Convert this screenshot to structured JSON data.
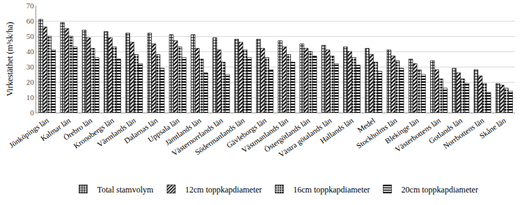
{
  "chart_data": {
    "type": "bar",
    "y_label": "Virkestäthet (m³sk/ha)",
    "categories": [
      "Jönköpings län",
      "Kalmar län",
      "Örebro län",
      "Kronobergs län",
      "Värmlands län",
      "Dalarnas län",
      "Uppsala län",
      "Jämtlands län",
      "Västernorrlands län",
      "Södermanlands län",
      "Gävleborgs län",
      "Västmanlands län",
      "Östergötlands län",
      "Västra götalands län",
      "Hallands län",
      "Medel",
      "Stockholms län",
      "Blekinge län",
      "Västerbottens län",
      "Gotlands län",
      "Norrbottens län",
      "Skåne län"
    ],
    "series": [
      {
        "name": "Total stamvolym",
        "color": "#000000",
        "marker": "+",
        "values": [
          61,
          59,
          54,
          53,
          52,
          52,
          51,
          51,
          49,
          48,
          48,
          47,
          45,
          44,
          43,
          42,
          41,
          35,
          34,
          29,
          28,
          19
        ]
      },
      {
        "name": "12cm toppkapdiameter",
        "color": "#000000",
        "marker": "/",
        "values": [
          56,
          55,
          49,
          49,
          46,
          45,
          47,
          42,
          41,
          46,
          42,
          43,
          42,
          41,
          40,
          38,
          37,
          32,
          28,
          26,
          24,
          18
        ]
      },
      {
        "name": "16cm toppkapdiameter",
        "color": "#000000",
        "marker": ".",
        "values": [
          50,
          50,
          42,
          43,
          38,
          38,
          43,
          35,
          33,
          41,
          36,
          38,
          40,
          37,
          36,
          33,
          34,
          28,
          22,
          22,
          19,
          16
        ]
      },
      {
        "name": "20cm toppkapdiameter",
        "color": "#000000",
        "marker": "-",
        "values": [
          41,
          43,
          36,
          35,
          32,
          29,
          36,
          26,
          25,
          36,
          28,
          33,
          37,
          32,
          31,
          27,
          29,
          25,
          16,
          19,
          13,
          14
        ]
      }
    ],
    "ylim": [
      0,
      70
    ],
    "yticks": [
      0,
      10,
      20,
      30,
      40,
      50,
      60,
      70
    ],
    "grid": true,
    "legend": "bottom"
  }
}
